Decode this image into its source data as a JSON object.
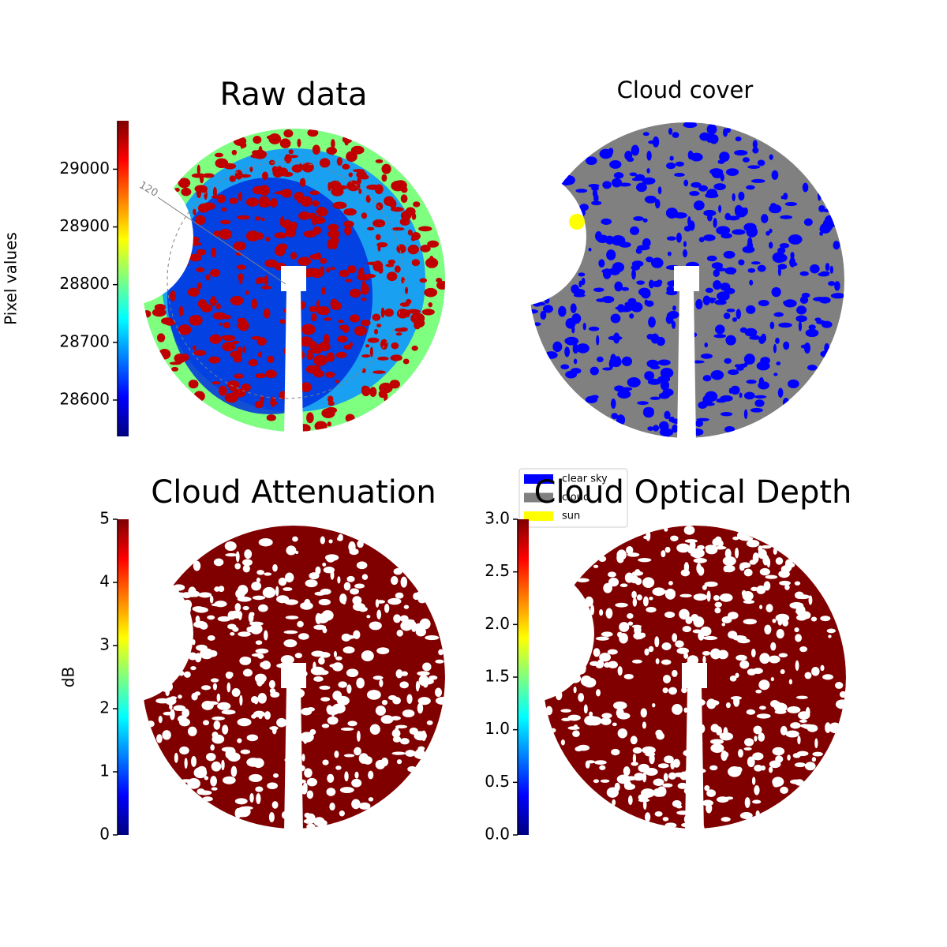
{
  "chart_data": [
    {
      "type": "image",
      "title": "Raw data",
      "palette": [
        "#1aa0f0",
        "#7fff7f",
        "#0030e0",
        "#c00000"
      ],
      "colorbar": {
        "label": "Pixel values",
        "colormap": "jet",
        "lim": [
          28537,
          29084
        ],
        "ticks": [
          28600,
          28700,
          28800,
          28900,
          29000
        ]
      },
      "annotations": [
        "120"
      ]
    },
    {
      "type": "image",
      "title": "Cloud cover",
      "palette": [
        "#808080",
        "#0000ff"
      ],
      "legend": [
        {
          "name": "clear sky",
          "color": "#0000ff"
        },
        {
          "name": "cloud",
          "color": "#808080"
        },
        {
          "name": "sun",
          "color": "#ffff00"
        }
      ]
    },
    {
      "type": "image",
      "title": "Cloud Attenuation",
      "palette": [
        "#800000",
        "#ffffff"
      ],
      "colorbar": {
        "label": "dB",
        "colormap": "jet",
        "lim": [
          0,
          5
        ],
        "ticks": [
          0,
          1,
          2,
          3,
          4,
          5
        ]
      }
    },
    {
      "type": "image",
      "title": "Cloud Optical Depth",
      "palette": [
        "#800000",
        "#ffffff"
      ],
      "colorbar": {
        "colormap": "jet",
        "lim": [
          0,
          3
        ],
        "ticks": [
          {
            "value": 0,
            "label": "0.0"
          },
          {
            "value": 0.5,
            "label": "0.5"
          },
          {
            "value": 1,
            "label": "1.0"
          },
          {
            "value": 1.5,
            "label": "1.5"
          },
          {
            "value": 2,
            "label": "2.0"
          },
          {
            "value": 2.5,
            "label": "2.5"
          },
          {
            "value": 3,
            "label": "3.0"
          }
        ]
      }
    }
  ]
}
